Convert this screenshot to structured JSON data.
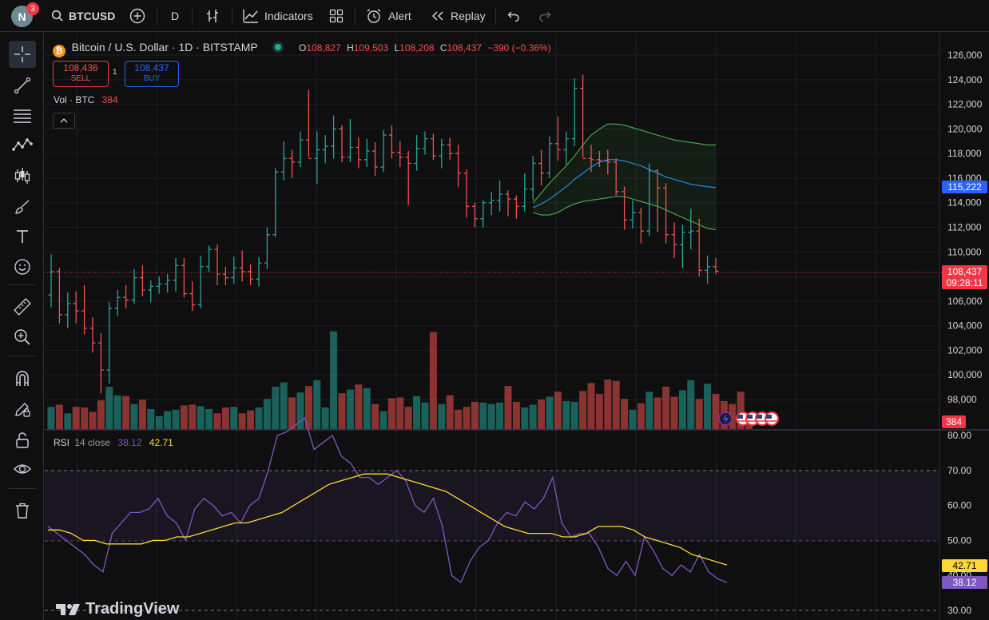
{
  "topbar": {
    "avatar_letter": "N",
    "notifications": "3",
    "symbol": "BTCUSD",
    "interval": "D",
    "indicators_label": "Indicators",
    "alert_label": "Alert",
    "replay_label": "Replay"
  },
  "legend": {
    "title": "Bitcoin / U.S. Dollar · 1D · BITSTAMP",
    "o_label": "O",
    "o_value": "108,827",
    "h_label": "H",
    "h_value": "109,503",
    "l_label": "L",
    "l_value": "108,208",
    "c_label": "C",
    "c_value": "108,437",
    "change": "−390 (−0.36%)",
    "sell_price": "108,436",
    "sell_label": "SELL",
    "spread": "1",
    "buy_price": "108,437",
    "buy_label": "BUY",
    "volume_label": "Vol · BTC",
    "volume_value": "384"
  },
  "price_axis": {
    "ticks": [
      "126,000",
      "124,000",
      "122,000",
      "120,000",
      "118,000",
      "116,000",
      "114,000",
      "112,000",
      "110,000",
      "108,000",
      "106,000",
      "104,000",
      "102,000",
      "100,000",
      "98,000"
    ],
    "ma_label": "115,222",
    "last_price": "108,437",
    "countdown": "09:28:11",
    "volume_badge": "384"
  },
  "rsi": {
    "label": "RSI",
    "params": "14 close",
    "rsi_value": "38.12",
    "ma_value": "42.71",
    "ticks": [
      "80.00",
      "70.00",
      "60.00",
      "50.00",
      "40.00",
      "30.00"
    ]
  },
  "watermark": "TradingView",
  "colors": {
    "up": "#26a69a",
    "down": "#ef5350",
    "rsi_line": "#7e57c2",
    "rsi_ma": "#fdd835",
    "bb_mid": "#2196f3",
    "bb_band": "#4caf50",
    "accent": "#2962ff"
  },
  "chart_data": {
    "type": "candlestick",
    "ylim": [
      97000,
      127000
    ],
    "candles": [
      {
        "o": 106500,
        "h": 109800,
        "l": 105500,
        "c": 108400
      },
      {
        "o": 108400,
        "h": 108700,
        "l": 104200,
        "c": 104900
      },
      {
        "o": 104900,
        "h": 106700,
        "l": 103800,
        "c": 105800
      },
      {
        "o": 105800,
        "h": 106800,
        "l": 104200,
        "c": 105200
      },
      {
        "o": 105200,
        "h": 107300,
        "l": 103300,
        "c": 103800
      },
      {
        "o": 103800,
        "h": 104700,
        "l": 101800,
        "c": 102600
      },
      {
        "o": 102600,
        "h": 103400,
        "l": 98500,
        "c": 100400
      },
      {
        "o": 100400,
        "h": 105900,
        "l": 99300,
        "c": 105400
      },
      {
        "o": 105400,
        "h": 106900,
        "l": 104800,
        "c": 106300
      },
      {
        "o": 106300,
        "h": 107300,
        "l": 105400,
        "c": 106100
      },
      {
        "o": 106100,
        "h": 108600,
        "l": 105800,
        "c": 107900
      },
      {
        "o": 107900,
        "h": 108900,
        "l": 106400,
        "c": 106900
      },
      {
        "o": 106900,
        "h": 107700,
        "l": 105900,
        "c": 107200
      },
      {
        "o": 107200,
        "h": 108000,
        "l": 106600,
        "c": 107400
      },
      {
        "o": 107400,
        "h": 108200,
        "l": 106700,
        "c": 107700
      },
      {
        "o": 107700,
        "h": 109500,
        "l": 106800,
        "c": 108900
      },
      {
        "o": 108900,
        "h": 109500,
        "l": 106300,
        "c": 106600
      },
      {
        "o": 106600,
        "h": 107600,
        "l": 105200,
        "c": 105700
      },
      {
        "o": 105700,
        "h": 109700,
        "l": 105400,
        "c": 108800
      },
      {
        "o": 108800,
        "h": 110500,
        "l": 108400,
        "c": 110200
      },
      {
        "o": 110200,
        "h": 110600,
        "l": 107300,
        "c": 108200
      },
      {
        "o": 108200,
        "h": 108800,
        "l": 107300,
        "c": 107900
      },
      {
        "o": 107900,
        "h": 109600,
        "l": 107400,
        "c": 108700
      },
      {
        "o": 108700,
        "h": 110100,
        "l": 107600,
        "c": 108400
      },
      {
        "o": 108400,
        "h": 109000,
        "l": 107300,
        "c": 107800
      },
      {
        "o": 107800,
        "h": 109600,
        "l": 107200,
        "c": 109100
      },
      {
        "o": 109100,
        "h": 112000,
        "l": 108600,
        "c": 111400
      },
      {
        "o": 111400,
        "h": 116800,
        "l": 111200,
        "c": 116500
      },
      {
        "o": 116500,
        "h": 119000,
        "l": 115800,
        "c": 117600
      },
      {
        "o": 117600,
        "h": 118300,
        "l": 116000,
        "c": 117300
      },
      {
        "o": 117300,
        "h": 119800,
        "l": 116900,
        "c": 119100
      },
      {
        "o": 119100,
        "h": 123200,
        "l": 117700,
        "c": 117600
      },
      {
        "o": 117600,
        "h": 119800,
        "l": 115500,
        "c": 118300
      },
      {
        "o": 118300,
        "h": 119500,
        "l": 117200,
        "c": 118600
      },
      {
        "o": 118600,
        "h": 121100,
        "l": 117600,
        "c": 120000
      },
      {
        "o": 120000,
        "h": 120300,
        "l": 117300,
        "c": 117700
      },
      {
        "o": 117700,
        "h": 120800,
        "l": 117300,
        "c": 118500
      },
      {
        "o": 118500,
        "h": 119300,
        "l": 116800,
        "c": 117500
      },
      {
        "o": 117500,
        "h": 119200,
        "l": 116900,
        "c": 118200
      },
      {
        "o": 118200,
        "h": 118900,
        "l": 116200,
        "c": 116900
      },
      {
        "o": 116900,
        "h": 119900,
        "l": 116500,
        "c": 119500
      },
      {
        "o": 119500,
        "h": 120300,
        "l": 117600,
        "c": 118100
      },
      {
        "o": 118100,
        "h": 119000,
        "l": 116900,
        "c": 117700
      },
      {
        "o": 117700,
        "h": 118200,
        "l": 113800,
        "c": 117200
      },
      {
        "o": 117200,
        "h": 119500,
        "l": 116600,
        "c": 118400
      },
      {
        "o": 118400,
        "h": 119800,
        "l": 117900,
        "c": 119200
      },
      {
        "o": 119200,
        "h": 119600,
        "l": 117500,
        "c": 117800
      },
      {
        "o": 117800,
        "h": 119200,
        "l": 116800,
        "c": 118700
      },
      {
        "o": 118700,
        "h": 119300,
        "l": 117500,
        "c": 118000
      },
      {
        "o": 118000,
        "h": 118700,
        "l": 115300,
        "c": 116400
      },
      {
        "o": 116400,
        "h": 116700,
        "l": 112800,
        "c": 113700
      },
      {
        "o": 113700,
        "h": 114000,
        "l": 112000,
        "c": 112700
      },
      {
        "o": 112700,
        "h": 114200,
        "l": 112000,
        "c": 114000
      },
      {
        "o": 114000,
        "h": 114900,
        "l": 113000,
        "c": 114200
      },
      {
        "o": 114200,
        "h": 115800,
        "l": 113300,
        "c": 114700
      },
      {
        "o": 114700,
        "h": 115000,
        "l": 112900,
        "c": 114300
      },
      {
        "o": 114300,
        "h": 114600,
        "l": 112700,
        "c": 113700
      },
      {
        "o": 113700,
        "h": 116400,
        "l": 113300,
        "c": 115100
      },
      {
        "o": 115100,
        "h": 117800,
        "l": 114200,
        "c": 117200
      },
      {
        "o": 117200,
        "h": 118300,
        "l": 115400,
        "c": 116400
      },
      {
        "o": 116400,
        "h": 119400,
        "l": 116000,
        "c": 118800
      },
      {
        "o": 118800,
        "h": 121000,
        "l": 117400,
        "c": 118300
      },
      {
        "o": 118300,
        "h": 119800,
        "l": 117100,
        "c": 119200
      },
      {
        "o": 119200,
        "h": 124100,
        "l": 118600,
        "c": 123300
      },
      {
        "o": 123300,
        "h": 124400,
        "l": 117700,
        "c": 117600
      },
      {
        "o": 117600,
        "h": 118700,
        "l": 116500,
        "c": 117500
      },
      {
        "o": 117500,
        "h": 118200,
        "l": 116900,
        "c": 117400
      },
      {
        "o": 117400,
        "h": 118300,
        "l": 116300,
        "c": 117300
      },
      {
        "o": 117300,
        "h": 117600,
        "l": 114600,
        "c": 114900
      },
      {
        "o": 114900,
        "h": 115300,
        "l": 111800,
        "c": 112600
      },
      {
        "o": 112600,
        "h": 114200,
        "l": 111900,
        "c": 113200
      },
      {
        "o": 113200,
        "h": 113600,
        "l": 110700,
        "c": 111700
      },
      {
        "o": 111700,
        "h": 117200,
        "l": 111300,
        "c": 116600
      },
      {
        "o": 116600,
        "h": 116700,
        "l": 111600,
        "c": 115200
      },
      {
        "o": 115200,
        "h": 115600,
        "l": 110700,
        "c": 111400
      },
      {
        "o": 111400,
        "h": 112400,
        "l": 109500,
        "c": 110600
      },
      {
        "o": 110600,
        "h": 112200,
        "l": 108700,
        "c": 111600
      },
      {
        "o": 111600,
        "h": 113500,
        "l": 110200,
        "c": 111700
      },
      {
        "o": 111700,
        "h": 112700,
        "l": 108000,
        "c": 108500
      },
      {
        "o": 108500,
        "h": 109700,
        "l": 107400,
        "c": 108800
      },
      {
        "o": 108800,
        "h": 109500,
        "l": 108200,
        "c": 108437
      }
    ],
    "volume": [
      3.2,
      3.5,
      2.3,
      3.2,
      3.1,
      2.5,
      4.1,
      6.0,
      4.8,
      4.7,
      3.6,
      4.2,
      2.9,
      1.9,
      2.6,
      2.8,
      3.4,
      3.5,
      3.3,
      2.9,
      2.3,
      3.1,
      3.2,
      2.3,
      2.7,
      3.1,
      4.3,
      6.0,
      6.6,
      4.5,
      5.2,
      6.1,
      6.9,
      3.1,
      13.7,
      5.1,
      5.6,
      6.3,
      5.8,
      3.6,
      2.6,
      4.4,
      4.5,
      3.2,
      4.7,
      3.8,
      13.6,
      3.6,
      4.8,
      2.8,
      3.2,
      3.9,
      3.8,
      3.6,
      3.8,
      6.1,
      3.9,
      3.1,
      3.5,
      4.2,
      4.6,
      5.3,
      4.0,
      3.9,
      5.4,
      6.5,
      5.0,
      7.0,
      6.8,
      4.3,
      2.8,
      3.7,
      5.3,
      4.5,
      6.0,
      4.6,
      5.5,
      6.9,
      4.3,
      6.4,
      5.0,
      4.0,
      3.6,
      5.3,
      2.0
    ],
    "bb_upper": [
      114000,
      114800,
      115600,
      116300,
      117000,
      117800,
      118700,
      119500,
      120000,
      120400,
      120400,
      120300,
      120100,
      119900,
      119700,
      119500,
      119300,
      119100,
      119000,
      118900,
      118800,
      118700,
      118700
    ],
    "bb_mid": [
      113600,
      113900,
      114300,
      114800,
      115300,
      115900,
      116400,
      116900,
      117300,
      117500,
      117500,
      117400,
      117200,
      117000,
      116700,
      116400,
      116100,
      115900,
      115700,
      115500,
      115400,
      115300,
      115222
    ],
    "bb_lower": [
      113200,
      113000,
      113000,
      113200,
      113600,
      113900,
      114100,
      114200,
      114300,
      114400,
      114500,
      114500,
      114300,
      114100,
      113900,
      113700,
      113400,
      113100,
      112800,
      112500,
      112200,
      111900,
      111800
    ],
    "rsi": [
      54,
      52,
      50,
      48,
      46,
      43,
      41,
      52,
      55,
      58,
      58,
      59,
      62,
      57,
      55,
      50,
      59,
      62,
      60,
      57,
      58,
      55,
      60,
      62,
      70,
      80,
      81,
      83,
      85,
      76,
      78,
      80,
      74,
      72,
      68,
      68,
      66,
      68,
      70,
      67,
      60,
      58,
      62,
      54,
      40,
      38,
      44,
      48,
      50,
      55,
      58,
      57,
      61,
      59,
      62,
      68,
      55,
      51,
      52,
      52,
      48,
      42,
      40,
      44,
      40,
      51,
      47,
      42,
      40,
      43,
      41,
      46,
      41,
      39,
      38
    ],
    "rsi_ma": [
      53,
      53,
      52,
      50,
      50,
      49,
      49,
      49,
      49,
      50,
      50,
      51,
      51,
      52,
      53,
      54,
      55,
      55,
      56,
      57,
      58,
      60,
      62,
      64,
      66,
      67,
      68,
      69,
      69,
      69,
      68,
      67,
      66,
      65,
      64,
      62,
      60,
      58,
      56,
      54,
      53,
      52,
      52,
      52,
      51,
      51,
      52,
      54,
      54,
      54,
      53,
      51,
      50,
      49,
      48,
      46,
      45,
      44,
      43
    ],
    "rsi_ylim": [
      30,
      80
    ]
  }
}
